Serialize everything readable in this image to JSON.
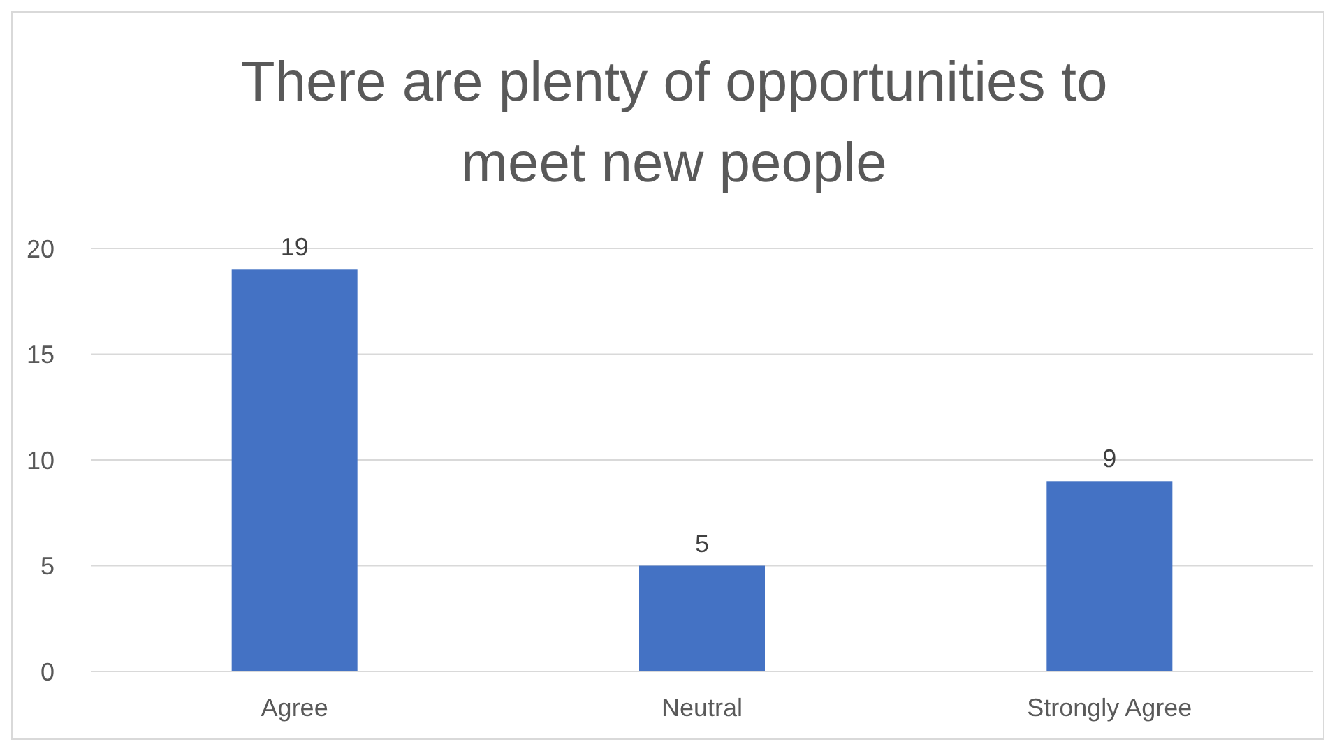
{
  "chart_data": {
    "type": "bar",
    "title": "There are plenty of opportunities to meet new people",
    "categories": [
      "Agree",
      "Neutral",
      "Strongly Agree"
    ],
    "values": [
      19,
      5,
      9
    ],
    "color": "#4472c4",
    "ylim": [
      0,
      20
    ],
    "yticks": [
      0,
      5,
      10,
      15,
      20
    ],
    "grid": "y",
    "data_labels": true
  }
}
